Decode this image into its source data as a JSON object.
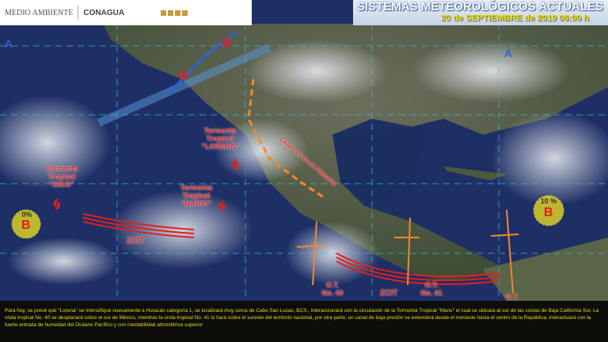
{
  "header": {
    "agency_left": "MEDIO AMBIENTE",
    "agency_right": "CONAGUA",
    "title": "SISTEMAS METEOROLÓGICOS ACTUALES",
    "date": "20 de SEPTIEMBRE de 2019 06:00 h"
  },
  "systems": {
    "kiko": "Tormenta Tropical \"KIKO\"",
    "mario": "Tormenta Tropical \"MARIO\"",
    "lorena": "Tormenta Tropical \"LORENA\"",
    "low_west_prob": "0%",
    "low_west": "B",
    "low_east_prob": "10 %",
    "low_east": "B",
    "low_north1": "B",
    "low_north2": "B",
    "high_west": "A",
    "high_east": "A",
    "zcit1": "ZCIT",
    "zcit2": "ZCIT",
    "trough": "CANAL DE BAJA PRESIÓN",
    "ot40": "O.T. No. 40",
    "ot41": "O.T. No. 41",
    "ot": "O.T."
  },
  "colors": {
    "storm": "#e0201c",
    "front": "#2e63d6",
    "trough": "#f08a2a",
    "caption_text": "#e4dc24"
  },
  "caption": "Para hoy, se prevé que \"Lorena\" se intensifique nuevamente a Huracán categoría 1, se localizará muy cerca de Cabo San Lucas, BCS., interaccionará con la circulación de la Tormenta Tropical \"Mario\" el cual se ubicará al sur de las costas de Baja California Sur. La onda tropical No. 40 se desplazará sobre el sur de México, mientras la onda tropical No. 41 lo hará sobre el sureste del territorio nacional, por otra parte, un canal de baja presión se extenderá desde el noroeste hasta el centro de la República, interactuará con la fuerte entrada de humedad del Océano Pacífico y con inestabilidad atmosférica superior"
}
